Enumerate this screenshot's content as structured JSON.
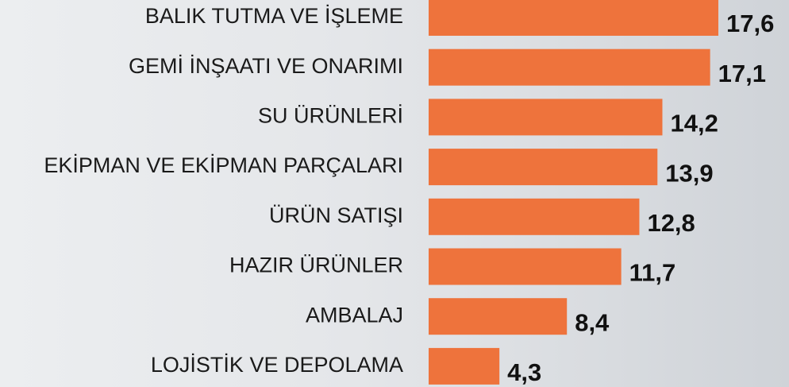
{
  "chart_data": {
    "type": "bar",
    "orientation": "horizontal",
    "categories": [
      "BALIK TUTMA VE İŞLEME",
      "GEMİ İNŞAATI VE ONARIMI",
      "SU ÜRÜNLERİ",
      "EKİPMAN VE EKİPMAN PARÇALARI",
      "ÜRÜN SATIŞI",
      "HAZIR ÜRÜNLER",
      "AMBALAJ",
      "LOJİSTİK VE DEPOLAMA"
    ],
    "values": [
      17.6,
      17.1,
      14.2,
      13.9,
      12.8,
      11.7,
      8.4,
      4.3
    ],
    "value_labels": [
      "17,6",
      "17,1",
      "14,2",
      "13,9",
      "12,8",
      "11,7",
      "8,4",
      "4,3"
    ],
    "color": "#ee733c"
  }
}
